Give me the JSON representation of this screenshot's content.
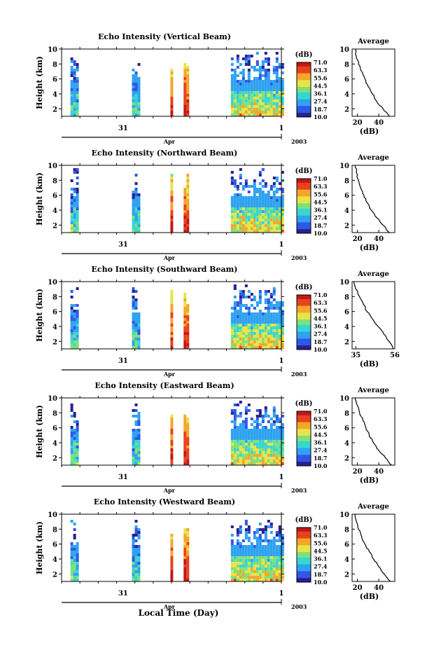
{
  "figure": {
    "xlabel": "Local Time (Day)",
    "colorbar_unit": "(dB)",
    "colorbar_ticks": [
      "71.0",
      "63.3",
      "55.6",
      "44.5",
      "36.1",
      "27.4",
      "18.7",
      "10.0"
    ],
    "average_title": "Average",
    "average_xlabel": "(dB)",
    "colors": {
      "scale": [
        "#2a1f8f",
        "#2f57e8",
        "#2fa2f0",
        "#38d6d0",
        "#7fe07a",
        "#e6e44a",
        "#f4a62a",
        "#e8421d",
        "#c01818"
      ]
    }
  },
  "chart_data": [
    {
      "type": "heatmap",
      "title": "Echo Intensity (Vertical Beam)",
      "ylabel": "Height (km)",
      "ylim": [
        1,
        10
      ],
      "yticks": [
        "10",
        "8",
        "6",
        "4",
        "2"
      ],
      "xticks": [
        "31",
        "Apr",
        "1"
      ],
      "year_label": "2003",
      "zlim": [
        10.0,
        71.0
      ],
      "average": {
        "title": "Average",
        "xlabel": "(dB)",
        "xticks": [
          "20",
          "40"
        ],
        "xlim": [
          15,
          55
        ],
        "height_km": [
          10,
          9,
          8,
          7,
          6,
          5,
          4,
          3,
          2,
          1
        ],
        "db": [
          18,
          19,
          21,
          24,
          27,
          30,
          34,
          38,
          44,
          50
        ]
      }
    },
    {
      "type": "heatmap",
      "title": "Echo Intensity (Northward Beam)",
      "ylabel": "Height (km)",
      "ylim": [
        1,
        10
      ],
      "yticks": [
        "10",
        "8",
        "6",
        "4",
        "2"
      ],
      "xticks": [
        "31",
        "Apr",
        "1"
      ],
      "year_label": "2003",
      "zlim": [
        10.0,
        71.0
      ],
      "average": {
        "title": "Average",
        "xlabel": "(dB)",
        "xticks": [
          "20",
          "40"
        ],
        "xlim": [
          15,
          55
        ],
        "height_km": [
          10,
          9,
          8,
          7,
          6,
          5,
          4,
          3,
          2,
          1
        ],
        "db": [
          18,
          19,
          21,
          23,
          26,
          29,
          33,
          38,
          44,
          50
        ]
      }
    },
    {
      "type": "heatmap",
      "title": "Echo Intensity (Southward Beam)",
      "ylabel": "Height (km)",
      "ylim": [
        1,
        10
      ],
      "yticks": [
        "10",
        "8",
        "6",
        "4",
        "2"
      ],
      "xticks": [
        "31",
        "Apr",
        "1"
      ],
      "year_label": "2003",
      "zlim": [
        10.0,
        71.0
      ],
      "average": {
        "title": "Average",
        "xlabel": "(dB)",
        "xticks": [
          "35",
          "56"
        ],
        "xlim": [
          33,
          56
        ],
        "height_km": [
          10,
          9,
          8,
          7,
          6,
          5,
          4,
          3,
          2,
          1
        ],
        "db": [
          34,
          35,
          37,
          39,
          41,
          44,
          47,
          50,
          53,
          55
        ]
      }
    },
    {
      "type": "heatmap",
      "title": "Echo Intensity (Eastward Beam)",
      "ylabel": "Height (km)",
      "ylim": [
        1,
        10
      ],
      "yticks": [
        "10",
        "8",
        "6",
        "4",
        "2"
      ],
      "xticks": [
        "31",
        "Apr",
        "1"
      ],
      "year_label": "2003",
      "zlim": [
        10.0,
        71.0
      ],
      "average": {
        "title": "Average",
        "xlabel": "(dB)",
        "xticks": [
          "20",
          "40"
        ],
        "xlim": [
          15,
          55
        ],
        "height_km": [
          10,
          9,
          8,
          7,
          6,
          5,
          4,
          3,
          2,
          1
        ],
        "db": [
          18,
          20,
          22,
          25,
          28,
          31,
          35,
          40,
          46,
          52
        ]
      }
    },
    {
      "type": "heatmap",
      "title": "Echo Intensity (Westward Beam)",
      "ylabel": "Height (km)",
      "ylim": [
        1,
        10
      ],
      "yticks": [
        "10",
        "8",
        "6",
        "4",
        "2"
      ],
      "xticks": [
        "31",
        "Apr",
        "1"
      ],
      "year_label": "2003",
      "zlim": [
        10.0,
        71.0
      ],
      "average": {
        "title": "Average",
        "xlabel": "(dB)",
        "xticks": [
          "20",
          "40"
        ],
        "xlim": [
          15,
          55
        ],
        "height_km": [
          10,
          9,
          8,
          7,
          6,
          5,
          4,
          3,
          2,
          1
        ],
        "db": [
          18,
          19,
          21,
          24,
          27,
          31,
          35,
          40,
          45,
          51
        ]
      }
    }
  ]
}
